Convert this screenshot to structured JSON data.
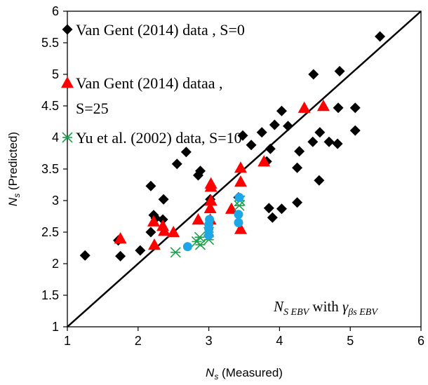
{
  "chart_data": {
    "type": "scatter",
    "xlabel": {
      "main": "N",
      "sub": "s",
      "rest": " (Measured)"
    },
    "ylabel": {
      "main": "N",
      "sub": "s",
      "rest": " (Predicted)"
    },
    "xlim": [
      1,
      6
    ],
    "ylim": [
      1,
      6
    ],
    "xticks": [
      "1",
      "2",
      "3",
      "4",
      "5",
      "6"
    ],
    "yticks": [
      "1",
      "1.5",
      "2",
      "2.5",
      "3",
      "3.5",
      "4",
      "4.5",
      "5",
      "5.5",
      "6"
    ],
    "grid": false,
    "legend_placement": "top-left",
    "annotation": {
      "n": "N",
      "n_sub": "S EBV",
      "with": " with ",
      "gamma": "γ",
      "gamma_sub": "βs EBV"
    },
    "reference_line": {
      "type": "y=x",
      "color": "#000000"
    },
    "series": [
      {
        "name": "Van Gent  (2014) data , S=0",
        "legend_lines": [
          "Van Gent  (2014) data , S=0"
        ],
        "marker": "diamond",
        "color": "#000000",
        "points": [
          [
            1.25,
            2.13
          ],
          [
            1.72,
            2.37
          ],
          [
            1.75,
            2.12
          ],
          [
            2.03,
            2.21
          ],
          [
            2.18,
            2.5
          ],
          [
            2.18,
            3.23
          ],
          [
            2.22,
            2.77
          ],
          [
            2.25,
            2.72
          ],
          [
            2.35,
            2.7
          ],
          [
            2.36,
            3.02
          ],
          [
            2.55,
            3.58
          ],
          [
            2.68,
            3.77
          ],
          [
            2.85,
            3.4
          ],
          [
            2.88,
            3.47
          ],
          [
            3.02,
            3.02
          ],
          [
            3.42,
            3.05
          ],
          [
            3.48,
            4.03
          ],
          [
            3.6,
            3.88
          ],
          [
            3.75,
            4.08
          ],
          [
            3.82,
            3.62
          ],
          [
            3.85,
            2.88
          ],
          [
            3.87,
            3.82
          ],
          [
            3.9,
            2.73
          ],
          [
            3.93,
            4.2
          ],
          [
            4.03,
            2.87
          ],
          [
            4.03,
            4.42
          ],
          [
            4.12,
            4.18
          ],
          [
            4.25,
            2.97
          ],
          [
            4.25,
            3.52
          ],
          [
            4.28,
            3.78
          ],
          [
            4.47,
            3.93
          ],
          [
            4.48,
            5.0
          ],
          [
            4.56,
            3.32
          ],
          [
            4.57,
            4.08
          ],
          [
            4.7,
            3.93
          ],
          [
            4.82,
            3.9
          ],
          [
            4.83,
            4.47
          ],
          [
            4.85,
            5.05
          ],
          [
            5.07,
            4.47
          ],
          [
            5.07,
            4.11
          ],
          [
            5.42,
            5.6
          ]
        ]
      },
      {
        "name": "Van Gent  (2014) dataa , S=25",
        "legend_lines": [
          "Van Gent  (2014) dataa ,",
          "S=25"
        ],
        "marker": "triangle",
        "color": "#ff0000",
        "points": [
          [
            1.75,
            2.4
          ],
          [
            2.22,
            2.67
          ],
          [
            2.23,
            2.3
          ],
          [
            2.35,
            2.6
          ],
          [
            2.37,
            2.52
          ],
          [
            2.5,
            2.5
          ],
          [
            2.85,
            2.7
          ],
          [
            3.02,
            2.7
          ],
          [
            3.03,
            3.0
          ],
          [
            3.03,
            3.22
          ],
          [
            3.03,
            3.27
          ],
          [
            3.02,
            2.88
          ],
          [
            3.32,
            2.87
          ],
          [
            3.45,
            3.52
          ],
          [
            3.45,
            3.3
          ],
          [
            3.45,
            2.55
          ],
          [
            3.78,
            3.62
          ],
          [
            4.35,
            4.47
          ],
          [
            4.62,
            4.5
          ]
        ]
      },
      {
        "name": "Yu et al. (2002) data, S=10",
        "legend_lines": [
          "Yu et al. (2002) data, S=10"
        ],
        "marker": "x",
        "color": "#1aa34a",
        "points": [
          [
            2.53,
            2.18
          ],
          [
            2.83,
            2.35
          ],
          [
            2.88,
            2.3
          ],
          [
            2.87,
            2.42
          ],
          [
            3.0,
            2.38
          ],
          [
            3.43,
            2.92
          ],
          [
            3.44,
            3.0
          ],
          [
            3.0,
            2.5
          ]
        ]
      },
      {
        "name": "",
        "legend_lines": [],
        "marker": "circle",
        "color": "#1ea7e6",
        "points": [
          [
            2.7,
            2.27
          ],
          [
            3.0,
            2.45
          ],
          [
            3.0,
            2.55
          ],
          [
            3.0,
            2.62
          ],
          [
            3.01,
            2.7
          ],
          [
            3.42,
            2.65
          ],
          [
            3.42,
            2.78
          ],
          [
            3.43,
            3.05
          ]
        ]
      }
    ]
  }
}
